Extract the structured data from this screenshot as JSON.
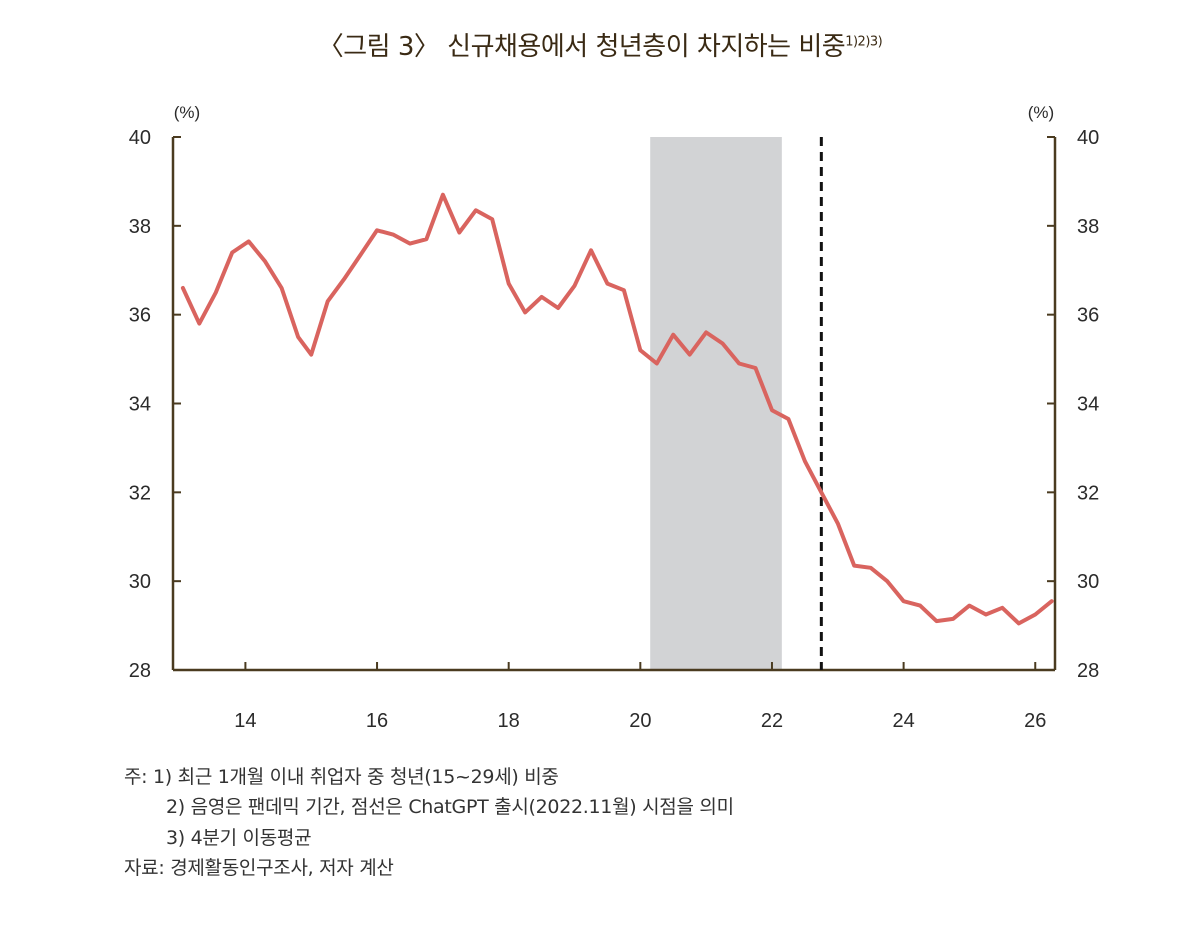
{
  "title": {
    "main": "〈그림 3〉 신규채용에서 청년층이 차지하는 비중",
    "superscript": "1)2)3)"
  },
  "notes": {
    "line1": "주: 1) 최근 1개월 이내 취업자 중 청년(15~29세) 비중",
    "line2": "2) 음영은 팬데믹 기간, 점선은 ChatGPT 출시(2022.11월) 시점을 의미",
    "line3": "3) 4분기 이동평균",
    "source": "자료: 경제활동인구조사, 저자 계산"
  },
  "colors": {
    "axis": "#4a3b20",
    "line": "#d9645f",
    "shade": "#d2d3d5",
    "dashed": "#111111"
  },
  "chart_data": {
    "type": "line",
    "title": "〈그림 3〉 신규채용에서 청년층이 차지하는 비중",
    "y_unit_left": "(%)",
    "y_unit_right": "(%)",
    "ylim": [
      28,
      40
    ],
    "y_ticks": [
      "28",
      "30",
      "32",
      "34",
      "36",
      "38",
      "40"
    ],
    "xlim": [
      2012.9,
      2026.3
    ],
    "x_ticks": [
      "14",
      "16",
      "18",
      "20",
      "22",
      "24",
      "26"
    ],
    "x_tick_values": [
      2014,
      2016,
      2018,
      2020,
      2022,
      2024,
      2026
    ],
    "shaded_period": [
      2020.15,
      2022.15
    ],
    "dashed_line_x": 2022.75,
    "grid": false,
    "series": [
      {
        "values": [
          [
            2013.05,
            36.6
          ],
          [
            2013.3,
            35.8
          ],
          [
            2013.55,
            36.5
          ],
          [
            2013.8,
            37.4
          ],
          [
            2014.05,
            37.65
          ],
          [
            2014.3,
            37.2
          ],
          [
            2014.55,
            36.6
          ],
          [
            2014.8,
            35.5
          ],
          [
            2015.0,
            35.1
          ],
          [
            2015.25,
            36.3
          ],
          [
            2015.5,
            36.8
          ],
          [
            2015.75,
            37.35
          ],
          [
            2016.0,
            37.9
          ],
          [
            2016.25,
            37.8
          ],
          [
            2016.5,
            37.6
          ],
          [
            2016.75,
            37.7
          ],
          [
            2017.0,
            38.7
          ],
          [
            2017.25,
            37.85
          ],
          [
            2017.5,
            38.35
          ],
          [
            2017.75,
            38.15
          ],
          [
            2018.0,
            36.7
          ],
          [
            2018.25,
            36.05
          ],
          [
            2018.5,
            36.4
          ],
          [
            2018.75,
            36.15
          ],
          [
            2019.0,
            36.65
          ],
          [
            2019.25,
            37.45
          ],
          [
            2019.5,
            36.7
          ],
          [
            2019.75,
            36.55
          ],
          [
            2020.0,
            35.2
          ],
          [
            2020.25,
            34.9
          ],
          [
            2020.5,
            35.55
          ],
          [
            2020.75,
            35.1
          ],
          [
            2021.0,
            35.6
          ],
          [
            2021.25,
            35.35
          ],
          [
            2021.5,
            34.9
          ],
          [
            2021.75,
            34.8
          ],
          [
            2022.0,
            33.85
          ],
          [
            2022.25,
            33.65
          ],
          [
            2022.5,
            32.7
          ],
          [
            2022.75,
            32.0
          ],
          [
            2023.0,
            31.3
          ],
          [
            2023.25,
            30.35
          ],
          [
            2023.5,
            30.3
          ],
          [
            2023.75,
            30.0
          ],
          [
            2024.0,
            29.55
          ],
          [
            2024.25,
            29.45
          ],
          [
            2024.5,
            29.1
          ],
          [
            2024.75,
            29.15
          ],
          [
            2025.0,
            29.45
          ],
          [
            2025.25,
            29.25
          ],
          [
            2025.5,
            29.4
          ],
          [
            2025.75,
            29.05
          ],
          [
            2026.0,
            29.25
          ],
          [
            2026.25,
            29.55
          ]
        ]
      }
    ]
  }
}
